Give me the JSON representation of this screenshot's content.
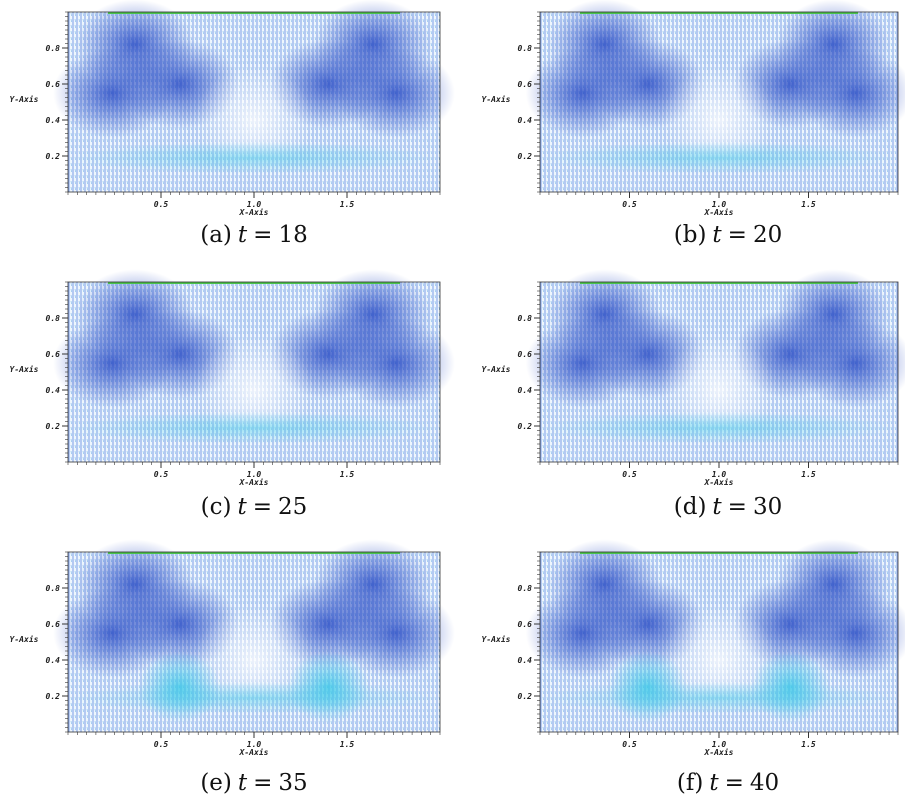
{
  "figure": {
    "axes": {
      "x_label": "X-Axis",
      "y_label": "Y-Axis",
      "xlim": [
        0,
        2
      ],
      "ylim": [
        0,
        1
      ],
      "xticks": [
        0.5,
        {
          "value": 1,
          "label": "1.0"
        },
        1.5
      ],
      "yticks": [
        0.2,
        0.4,
        0.6,
        0.8
      ]
    },
    "panels": [
      {
        "label": "(a)",
        "variable": "t",
        "relation": "=",
        "value": 18
      },
      {
        "label": "(b)",
        "variable": "t",
        "relation": "=",
        "value": 20
      },
      {
        "label": "(c)",
        "variable": "t",
        "relation": "=",
        "value": 25
      },
      {
        "label": "(d)",
        "variable": "t",
        "relation": "=",
        "value": 30
      },
      {
        "label": "(e)",
        "variable": "t",
        "relation": "=",
        "value": 35
      },
      {
        "label": "(f)",
        "variable": "t",
        "relation": "=",
        "value": 40
      }
    ]
  }
}
